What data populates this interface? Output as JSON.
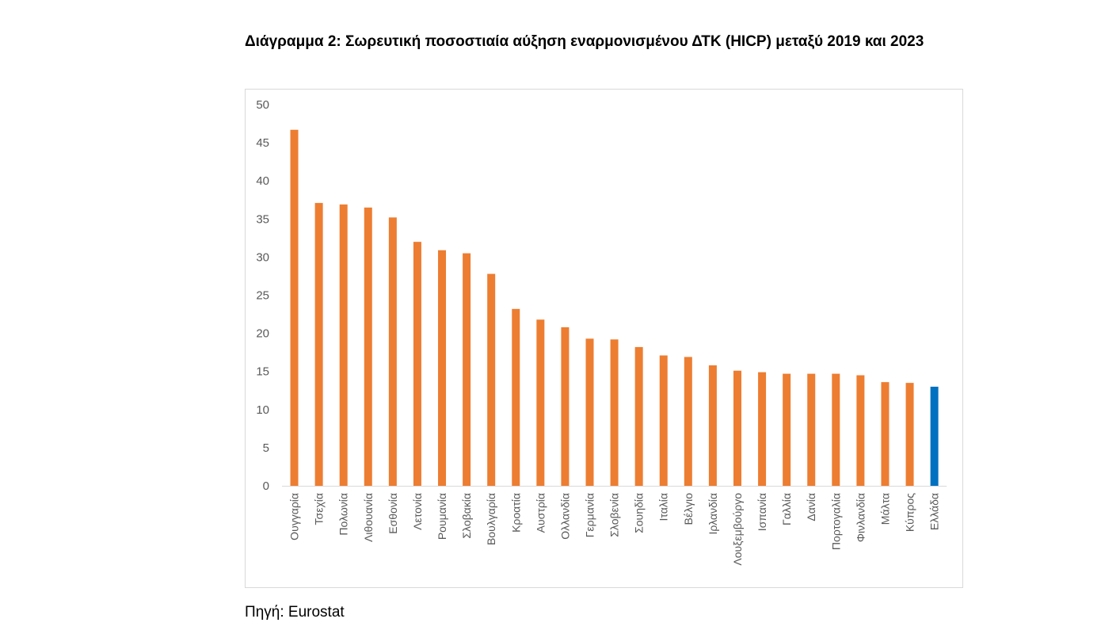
{
  "title": "Διάγραμμα 2: Σωρευτική ποσοστιαία αύξηση εναρμονισμένου ΔΤΚ (HICP)  μεταξύ 2019 και 2023",
  "source": "Πηγή: Eurostat",
  "chart_data": {
    "type": "bar",
    "title": "Διάγραμμα 2: Σωρευτική ποσοστιαία αύξηση εναρμονισμένου ΔΤΚ (HICP)  μεταξύ 2019 και 2023",
    "xlabel": "",
    "ylabel": "",
    "ylim": [
      0,
      50
    ],
    "yticks": [
      0,
      5,
      10,
      15,
      20,
      25,
      30,
      35,
      40,
      45,
      50
    ],
    "grid": false,
    "categories": [
      "Ουγγαρία",
      "Τσεχία",
      "Πολωνία",
      "Λιθουανία",
      "Εσθονία",
      "Λετονία",
      "Ρουμανία",
      "Σλοβακία",
      "Βουλγαρία",
      "Κροατία",
      "Αυστρία",
      "Ολλανδία",
      "Γερμανία",
      "Σλοβενία",
      "Σουηδία",
      "Ιταλία",
      "Βέλγιο",
      "Ιρλανδία",
      "Λουξεμβούργο",
      "Ισπανία",
      "Γαλλία",
      "Δανία",
      "Πορτογαλία",
      "Φινλανδία",
      "Μάλτα",
      "Κύπρος",
      "Ελλάδα"
    ],
    "values": [
      46.7,
      37.1,
      36.9,
      36.5,
      35.2,
      32.0,
      30.9,
      30.5,
      27.8,
      23.2,
      21.8,
      20.8,
      19.3,
      19.2,
      18.2,
      17.1,
      16.9,
      15.8,
      15.1,
      14.9,
      14.7,
      14.7,
      14.7,
      14.5,
      13.6,
      13.5,
      13.0
    ],
    "colors": {
      "default": "#ED7D31",
      "highlight": "#0070C0"
    },
    "highlight_category": "Ελλάδα"
  }
}
